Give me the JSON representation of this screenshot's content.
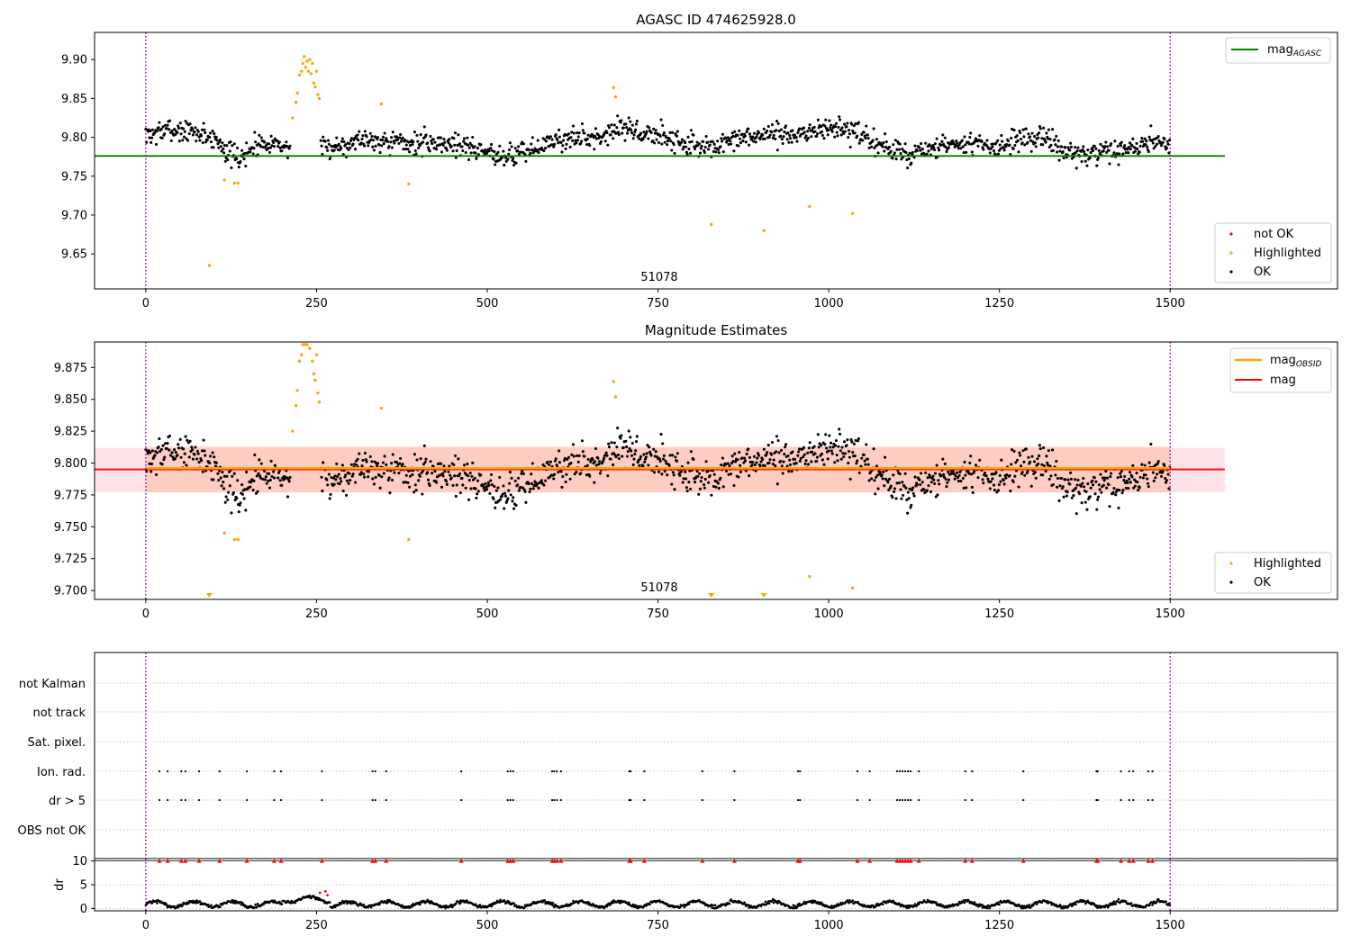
{
  "figure": {
    "title_top": "AGASC ID 474625928.0",
    "title_mid": "Magnitude Estimates",
    "obsid_label": "51078"
  },
  "chart_data": [
    {
      "type": "scatter",
      "title": "AGASC ID 474625928.0",
      "xlim": [
        -75,
        1745
      ],
      "ylim": [
        9.605,
        9.935
      ],
      "xticks": [
        0,
        250,
        500,
        750,
        1000,
        1250,
        1500
      ],
      "yticks": [
        9.65,
        9.7,
        9.75,
        9.8,
        9.85,
        9.9
      ],
      "vlines": [
        0,
        1500
      ],
      "hlines": [
        {
          "name": "mag_AGASC",
          "y": 9.776,
          "x": [
            -75,
            1580
          ],
          "color": "#008000"
        }
      ],
      "legend_upper": [
        {
          "label": "mag",
          "sub": "AGASC",
          "color": "#008000"
        }
      ],
      "legend_lower": [
        {
          "label": "not OK",
          "color": "#ff0000"
        },
        {
          "label": "Highlighted",
          "color": "#ffa500"
        },
        {
          "label": "OK",
          "color": "#000000"
        }
      ],
      "annotation": {
        "text": "51078",
        "x": 750
      },
      "series": [
        {
          "name": "Highlighted",
          "color": "#ffa500",
          "points": [
            [
              93,
              9.635
            ],
            [
              115,
              9.745
            ],
            [
              130,
              9.741
            ],
            [
              135,
              9.741
            ],
            [
              215,
              9.825
            ],
            [
              220,
              9.845
            ],
            [
              222,
              9.857
            ],
            [
              225,
              9.88
            ],
            [
              228,
              9.885
            ],
            [
              230,
              9.895
            ],
            [
              232,
              9.904
            ],
            [
              234,
              9.89
            ],
            [
              236,
              9.898
            ],
            [
              238,
              9.885
            ],
            [
              240,
              9.9
            ],
            [
              242,
              9.882
            ],
            [
              244,
              9.895
            ],
            [
              246,
              9.87
            ],
            [
              248,
              9.865
            ],
            [
              250,
              9.885
            ],
            [
              252,
              9.855
            ],
            [
              254,
              9.85
            ],
            [
              345,
              9.843
            ],
            [
              385,
              9.74
            ],
            [
              685,
              9.864
            ],
            [
              688,
              9.852
            ],
            [
              828,
              9.688
            ],
            [
              905,
              9.68
            ],
            [
              972,
              9.711
            ],
            [
              1035,
              9.702
            ]
          ]
        }
      ]
    },
    {
      "type": "scatter",
      "title": "Magnitude Estimates",
      "xlim": [
        -75,
        1745
      ],
      "ylim": [
        9.693,
        9.895
      ],
      "xticks": [
        0,
        250,
        500,
        750,
        1000,
        1250,
        1500
      ],
      "yticks": [
        9.7,
        9.725,
        9.75,
        9.775,
        9.8,
        9.825,
        9.85,
        9.875
      ],
      "vlines": [
        0,
        1500
      ],
      "hlines": [
        {
          "name": "mag",
          "y": 9.795,
          "x": [
            -75,
            1580
          ],
          "color": "#ff0000"
        },
        {
          "name": "mag_OBSID",
          "y": 9.796,
          "x": [
            0,
            1500
          ],
          "color": "#ffa500"
        }
      ],
      "bands": [
        {
          "y": [
            9.777,
            9.812
          ],
          "x": [
            -75,
            1580
          ],
          "color": "#ffc0cb"
        },
        {
          "y": [
            9.777,
            9.813
          ],
          "x": [
            0,
            1500
          ],
          "color": "#ffa07a"
        }
      ],
      "legend_upper": [
        {
          "label": "mag",
          "sub": "OBSID",
          "color": "#ffa500"
        },
        {
          "label": "mag",
          "sub": "",
          "color": "#ff0000"
        }
      ],
      "legend_lower": [
        {
          "label": "Highlighted",
          "color": "#ffa500"
        },
        {
          "label": "OK",
          "color": "#000000"
        }
      ],
      "annotation": {
        "text": "51078",
        "x": 750
      },
      "lower_limit_markers": [
        93,
        828,
        905
      ],
      "series": [
        {
          "name": "Highlighted",
          "color": "#ffa500",
          "points": [
            [
              115,
              9.745
            ],
            [
              130,
              9.74
            ],
            [
              135,
              9.74
            ],
            [
              215,
              9.825
            ],
            [
              220,
              9.845
            ],
            [
              222,
              9.857
            ],
            [
              225,
              9.88
            ],
            [
              228,
              9.885
            ],
            [
              230,
              9.893
            ],
            [
              232,
              9.893
            ],
            [
              236,
              9.893
            ],
            [
              240,
              9.89
            ],
            [
              244,
              9.88
            ],
            [
              246,
              9.87
            ],
            [
              248,
              9.865
            ],
            [
              250,
              9.885
            ],
            [
              252,
              9.855
            ],
            [
              254,
              9.848
            ],
            [
              345,
              9.843
            ],
            [
              385,
              9.74
            ],
            [
              685,
              9.864
            ],
            [
              688,
              9.852
            ],
            [
              972,
              9.711
            ],
            [
              1035,
              9.702
            ]
          ]
        }
      ]
    },
    {
      "type": "scatter",
      "title": "",
      "xlim": [
        -75,
        1745
      ],
      "categories": [
        "not Kalman",
        "not track",
        "Sat. pixel.",
        "Ion. rad.",
        "dr > 5",
        "OBS not OK"
      ],
      "xticks": [
        0,
        250,
        500,
        750,
        1000,
        1250,
        1500
      ],
      "vlines": [
        0,
        1500
      ],
      "flag_x": [
        20,
        32,
        52,
        58,
        78,
        108,
        148,
        188,
        198,
        258,
        332,
        336,
        352,
        462,
        530,
        534,
        538,
        595,
        598,
        602,
        608,
        708,
        710,
        730,
        815,
        862,
        955,
        958,
        1042,
        1060,
        1100,
        1104,
        1108,
        1112,
        1116,
        1120,
        1132,
        1200,
        1210,
        1285,
        1392,
        1394,
        1428,
        1440,
        1446,
        1468,
        1474
      ],
      "flag_rows": [
        "Ion. rad.",
        "dr > 5"
      ]
    },
    {
      "type": "scatter",
      "title": "",
      "ylabel": "dr",
      "xlim": [
        -75,
        1745
      ],
      "ylim": [
        -0.5,
        10.5
      ],
      "yticks": [
        0,
        5,
        10
      ],
      "xticks": [
        0,
        250,
        500,
        750,
        1000,
        1250,
        1500
      ],
      "vlines": [
        0,
        1500
      ],
      "capped_value": 10,
      "red_points": [
        [
          255,
          3.3
        ],
        [
          263,
          3.6
        ],
        [
          266,
          2.8
        ]
      ]
    }
  ]
}
